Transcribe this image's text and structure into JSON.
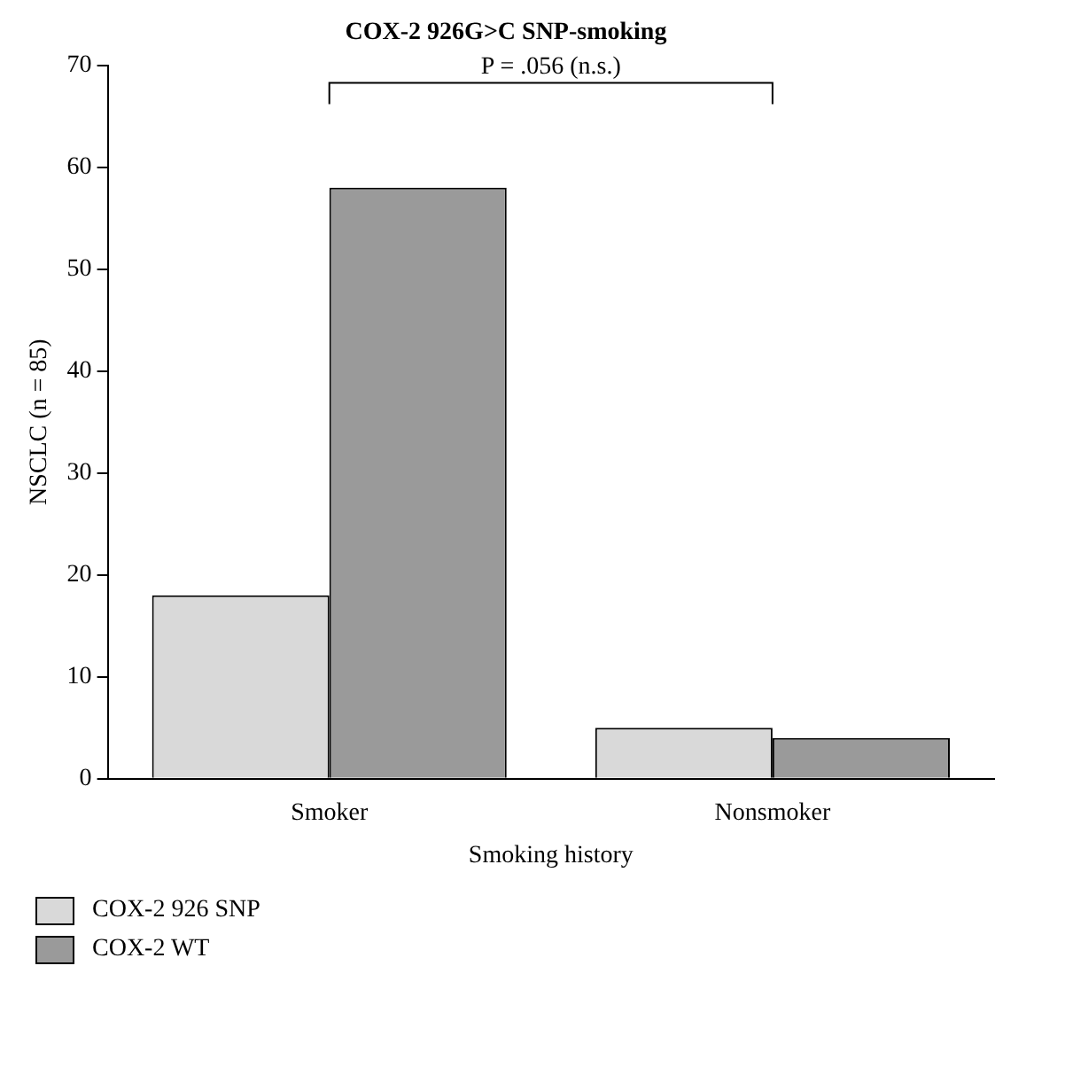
{
  "chart_data": {
    "type": "bar",
    "title": "COX-2 926G>C SNP-smoking",
    "xlabel": "Smoking history",
    "ylabel": "NSCLC (n = 85)",
    "categories": [
      "Smoker",
      "Nonsmoker"
    ],
    "series": [
      {
        "name": "COX-2 926 SNP",
        "color": "#d9d9d9",
        "values": [
          18,
          5
        ]
      },
      {
        "name": "COX-2 WT",
        "color": "#9a9a9a",
        "values": [
          58,
          4
        ]
      }
    ],
    "ylim": [
      0,
      70
    ],
    "yticks": [
      0,
      10,
      20,
      30,
      40,
      50,
      60,
      70
    ],
    "grid": false,
    "legend": "bottom left",
    "annotations": [
      "P = .056 (n.s.)"
    ]
  }
}
